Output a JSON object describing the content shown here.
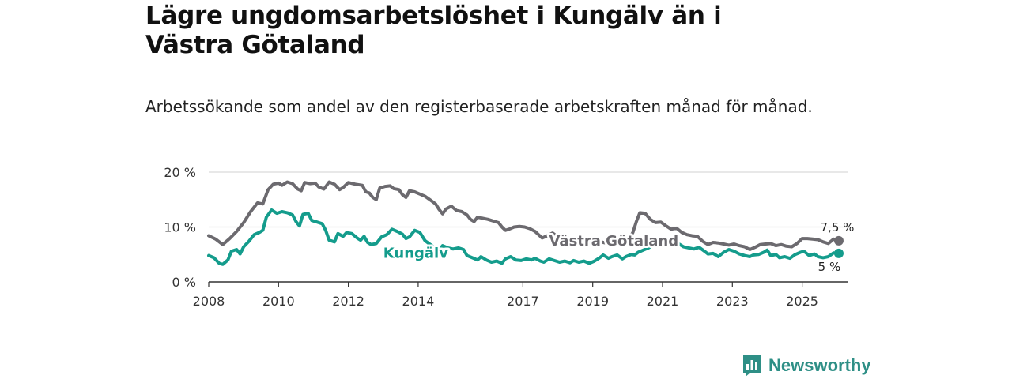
{
  "title": "Lägre ungdomsarbetslöshet i Kungälv än i Västra Götaland",
  "subtitle": "Arbetssökande som andel av den registerbaserade arbetskraften månad för månad.",
  "brand": {
    "name": "Newsworthy"
  },
  "colors": {
    "kungalv": "#149c8c",
    "vastra": "#6c6a6f",
    "grid": "#d9d9d9",
    "axis": "#333333"
  },
  "chart_data": {
    "type": "line",
    "title": "Lägre ungdomsarbetslöshet i Kungälv än i Västra Götaland",
    "xlabel": "",
    "ylabel": "",
    "xlim": [
      2008,
      2026.3
    ],
    "ylim": [
      0,
      20
    ],
    "x_ticks": [
      {
        "value": 2008,
        "label": "2008"
      },
      {
        "value": 2010,
        "label": "2010"
      },
      {
        "value": 2012,
        "label": "2012"
      },
      {
        "value": 2014,
        "label": "2014"
      },
      {
        "value": 2017,
        "label": "2017"
      },
      {
        "value": 2019,
        "label": "2019"
      },
      {
        "value": 2021,
        "label": "2021"
      },
      {
        "value": 2023,
        "label": "2023"
      },
      {
        "value": 2025,
        "label": "2025"
      }
    ],
    "y_ticks": [
      {
        "value": 0,
        "label": "0 %"
      },
      {
        "value": 10,
        "label": "10 %"
      },
      {
        "value": 20,
        "label": "20 %"
      }
    ],
    "series": [
      {
        "name": "Västra Götaland",
        "color": "#6c6a6f",
        "end_label": "7,5 %",
        "points": [
          [
            2008.0,
            8.4
          ],
          [
            2008.2,
            7.8
          ],
          [
            2008.4,
            6.8
          ],
          [
            2008.6,
            7.9
          ],
          [
            2008.8,
            9.2
          ],
          [
            2009.0,
            10.8
          ],
          [
            2009.2,
            12.8
          ],
          [
            2009.4,
            14.4
          ],
          [
            2009.55,
            14.2
          ],
          [
            2009.7,
            16.8
          ],
          [
            2009.85,
            17.8
          ],
          [
            2010.0,
            18.0
          ],
          [
            2010.1,
            17.6
          ],
          [
            2010.25,
            18.2
          ],
          [
            2010.4,
            17.9
          ],
          [
            2010.55,
            16.9
          ],
          [
            2010.65,
            16.6
          ],
          [
            2010.75,
            18.1
          ],
          [
            2010.9,
            17.9
          ],
          [
            2011.05,
            18.0
          ],
          [
            2011.15,
            17.3
          ],
          [
            2011.3,
            16.9
          ],
          [
            2011.45,
            18.2
          ],
          [
            2011.6,
            17.8
          ],
          [
            2011.75,
            16.8
          ],
          [
            2011.85,
            17.2
          ],
          [
            2012.0,
            18.1
          ],
          [
            2012.2,
            17.8
          ],
          [
            2012.4,
            17.6
          ],
          [
            2012.5,
            16.4
          ],
          [
            2012.6,
            16.2
          ],
          [
            2012.7,
            15.4
          ],
          [
            2012.8,
            15.0
          ],
          [
            2012.9,
            17.1
          ],
          [
            2013.05,
            17.4
          ],
          [
            2013.2,
            17.5
          ],
          [
            2013.3,
            17.0
          ],
          [
            2013.45,
            16.8
          ],
          [
            2013.55,
            15.9
          ],
          [
            2013.65,
            15.4
          ],
          [
            2013.75,
            16.6
          ],
          [
            2013.9,
            16.4
          ],
          [
            2014.05,
            16.0
          ],
          [
            2014.2,
            15.6
          ],
          [
            2014.35,
            14.9
          ],
          [
            2014.5,
            14.2
          ],
          [
            2014.6,
            13.2
          ],
          [
            2014.7,
            12.4
          ],
          [
            2014.8,
            13.3
          ],
          [
            2014.95,
            13.8
          ],
          [
            2015.1,
            13.0
          ],
          [
            2015.25,
            12.8
          ],
          [
            2015.4,
            12.2
          ],
          [
            2015.5,
            11.4
          ],
          [
            2015.6,
            11.0
          ],
          [
            2015.7,
            11.8
          ],
          [
            2015.85,
            11.6
          ],
          [
            2016.0,
            11.4
          ],
          [
            2016.15,
            11.1
          ],
          [
            2016.3,
            10.8
          ],
          [
            2016.4,
            10.0
          ],
          [
            2016.5,
            9.4
          ],
          [
            2016.6,
            9.6
          ],
          [
            2016.75,
            10.0
          ],
          [
            2016.9,
            10.1
          ],
          [
            2017.05,
            10.0
          ],
          [
            2017.2,
            9.7
          ],
          [
            2017.35,
            9.2
          ],
          [
            2017.45,
            8.6
          ],
          [
            2017.55,
            8.0
          ],
          [
            2017.7,
            8.4
          ],
          [
            2017.85,
            8.9
          ],
          [
            2018.0,
            8.2
          ],
          [
            2018.2,
            8.1
          ],
          [
            2018.4,
            7.8
          ],
          [
            2018.55,
            7.4
          ],
          [
            2018.7,
            7.6
          ],
          [
            2018.85,
            8.0
          ],
          [
            2019.0,
            7.9
          ],
          [
            2019.15,
            7.5
          ],
          [
            2019.3,
            7.2
          ],
          [
            2019.45,
            7.0
          ],
          [
            2019.6,
            7.6
          ],
          [
            2019.75,
            7.8
          ],
          [
            2019.9,
            7.6
          ],
          [
            2020.05,
            8.0
          ],
          [
            2020.15,
            9.0
          ],
          [
            2020.25,
            11.0
          ],
          [
            2020.35,
            12.6
          ],
          [
            2020.5,
            12.5
          ],
          [
            2020.65,
            11.4
          ],
          [
            2020.8,
            10.8
          ],
          [
            2020.95,
            10.9
          ],
          [
            2021.1,
            10.2
          ],
          [
            2021.25,
            9.6
          ],
          [
            2021.4,
            9.8
          ],
          [
            2021.55,
            9.0
          ],
          [
            2021.7,
            8.6
          ],
          [
            2021.85,
            8.4
          ],
          [
            2022.0,
            8.3
          ],
          [
            2022.15,
            7.4
          ],
          [
            2022.3,
            6.8
          ],
          [
            2022.45,
            7.2
          ],
          [
            2022.6,
            7.1
          ],
          [
            2022.75,
            6.9
          ],
          [
            2022.9,
            6.7
          ],
          [
            2023.05,
            6.9
          ],
          [
            2023.2,
            6.6
          ],
          [
            2023.35,
            6.4
          ],
          [
            2023.5,
            5.9
          ],
          [
            2023.65,
            6.3
          ],
          [
            2023.8,
            6.8
          ],
          [
            2023.95,
            6.9
          ],
          [
            2024.1,
            7.0
          ],
          [
            2024.25,
            6.6
          ],
          [
            2024.4,
            6.8
          ],
          [
            2024.55,
            6.5
          ],
          [
            2024.7,
            6.4
          ],
          [
            2024.85,
            7.0
          ],
          [
            2025.0,
            7.9
          ],
          [
            2025.15,
            7.9
          ],
          [
            2025.3,
            7.8
          ],
          [
            2025.45,
            7.7
          ],
          [
            2025.6,
            7.3
          ],
          [
            2025.75,
            7.0
          ],
          [
            2025.9,
            7.8
          ],
          [
            2026.05,
            7.5
          ]
        ]
      },
      {
        "name": "Kungälv",
        "color": "#149c8c",
        "end_label": "5 %",
        "points": [
          [
            2008.0,
            4.8
          ],
          [
            2008.15,
            4.4
          ],
          [
            2008.3,
            3.4
          ],
          [
            2008.4,
            3.2
          ],
          [
            2008.55,
            4.0
          ],
          [
            2008.65,
            5.6
          ],
          [
            2008.8,
            5.9
          ],
          [
            2008.9,
            5.1
          ],
          [
            2009.0,
            6.4
          ],
          [
            2009.15,
            7.4
          ],
          [
            2009.3,
            8.6
          ],
          [
            2009.45,
            9.0
          ],
          [
            2009.55,
            9.4
          ],
          [
            2009.65,
            11.8
          ],
          [
            2009.8,
            13.1
          ],
          [
            2009.95,
            12.5
          ],
          [
            2010.1,
            12.8
          ],
          [
            2010.25,
            12.6
          ],
          [
            2010.4,
            12.2
          ],
          [
            2010.5,
            11.0
          ],
          [
            2010.6,
            10.2
          ],
          [
            2010.7,
            12.3
          ],
          [
            2010.85,
            12.5
          ],
          [
            2010.95,
            11.2
          ],
          [
            2011.1,
            10.9
          ],
          [
            2011.25,
            10.6
          ],
          [
            2011.35,
            9.4
          ],
          [
            2011.45,
            7.6
          ],
          [
            2011.6,
            7.3
          ],
          [
            2011.7,
            8.8
          ],
          [
            2011.85,
            8.3
          ],
          [
            2011.95,
            9.0
          ],
          [
            2012.1,
            8.8
          ],
          [
            2012.25,
            8.0
          ],
          [
            2012.35,
            7.6
          ],
          [
            2012.45,
            8.3
          ],
          [
            2012.55,
            7.2
          ],
          [
            2012.65,
            6.8
          ],
          [
            2012.8,
            7.0
          ],
          [
            2012.95,
            8.2
          ],
          [
            2013.1,
            8.6
          ],
          [
            2013.25,
            9.6
          ],
          [
            2013.4,
            9.2
          ],
          [
            2013.55,
            8.7
          ],
          [
            2013.65,
            7.9
          ],
          [
            2013.75,
            8.2
          ],
          [
            2013.9,
            9.4
          ],
          [
            2014.05,
            9.0
          ],
          [
            2014.2,
            7.5
          ],
          [
            2014.35,
            6.8
          ],
          [
            2014.5,
            6.0
          ],
          [
            2014.6,
            5.8
          ],
          [
            2014.7,
            6.6
          ],
          [
            2014.85,
            6.2
          ],
          [
            2015.0,
            6.0
          ],
          [
            2015.15,
            6.2
          ],
          [
            2015.3,
            5.9
          ],
          [
            2015.4,
            4.8
          ],
          [
            2015.55,
            4.4
          ],
          [
            2015.7,
            4.0
          ],
          [
            2015.8,
            4.6
          ],
          [
            2015.95,
            4.0
          ],
          [
            2016.1,
            3.6
          ],
          [
            2016.25,
            3.8
          ],
          [
            2016.4,
            3.4
          ],
          [
            2016.5,
            4.2
          ],
          [
            2016.65,
            4.6
          ],
          [
            2016.8,
            4.0
          ],
          [
            2016.95,
            3.9
          ],
          [
            2017.1,
            4.2
          ],
          [
            2017.25,
            4.0
          ],
          [
            2017.35,
            4.3
          ],
          [
            2017.5,
            3.8
          ],
          [
            2017.6,
            3.6
          ],
          [
            2017.75,
            4.2
          ],
          [
            2017.9,
            3.9
          ],
          [
            2018.05,
            3.6
          ],
          [
            2018.2,
            3.8
          ],
          [
            2018.35,
            3.5
          ],
          [
            2018.45,
            3.9
          ],
          [
            2018.6,
            3.6
          ],
          [
            2018.75,
            3.8
          ],
          [
            2018.9,
            3.4
          ],
          [
            2019.05,
            3.8
          ],
          [
            2019.2,
            4.4
          ],
          [
            2019.3,
            4.9
          ],
          [
            2019.45,
            4.3
          ],
          [
            2019.55,
            4.6
          ],
          [
            2019.7,
            4.9
          ],
          [
            2019.85,
            4.2
          ],
          [
            2019.95,
            4.6
          ],
          [
            2020.1,
            5.0
          ],
          [
            2020.2,
            4.9
          ],
          [
            2020.3,
            5.4
          ],
          [
            2020.45,
            5.8
          ],
          [
            2020.6,
            6.2
          ],
          [
            2020.75,
            6.8
          ],
          [
            2020.9,
            7.4
          ],
          [
            2021.05,
            7.2
          ],
          [
            2021.2,
            7.0
          ],
          [
            2021.35,
            7.6
          ],
          [
            2021.45,
            7.0
          ],
          [
            2021.6,
            6.4
          ],
          [
            2021.75,
            6.2
          ],
          [
            2021.9,
            6.0
          ],
          [
            2022.05,
            6.3
          ],
          [
            2022.2,
            5.6
          ],
          [
            2022.3,
            5.1
          ],
          [
            2022.45,
            5.2
          ],
          [
            2022.6,
            4.6
          ],
          [
            2022.75,
            5.4
          ],
          [
            2022.9,
            5.9
          ],
          [
            2023.05,
            5.6
          ],
          [
            2023.2,
            5.1
          ],
          [
            2023.35,
            4.8
          ],
          [
            2023.5,
            4.6
          ],
          [
            2023.6,
            4.9
          ],
          [
            2023.75,
            5.0
          ],
          [
            2023.9,
            5.4
          ],
          [
            2024.0,
            5.8
          ],
          [
            2024.1,
            4.8
          ],
          [
            2024.25,
            5.0
          ],
          [
            2024.35,
            4.4
          ],
          [
            2024.5,
            4.6
          ],
          [
            2024.65,
            4.3
          ],
          [
            2024.8,
            5.0
          ],
          [
            2024.95,
            5.4
          ],
          [
            2025.05,
            5.6
          ],
          [
            2025.2,
            4.8
          ],
          [
            2025.35,
            5.1
          ],
          [
            2025.45,
            4.6
          ],
          [
            2025.6,
            4.4
          ],
          [
            2025.75,
            4.6
          ],
          [
            2025.9,
            5.3
          ],
          [
            2026.05,
            5.2
          ]
        ]
      }
    ]
  }
}
